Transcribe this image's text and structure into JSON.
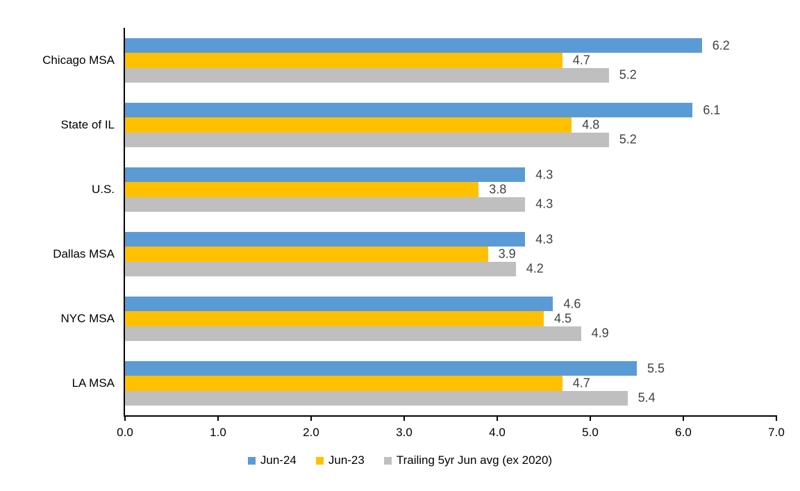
{
  "chart_data": {
    "type": "bar",
    "orientation": "horizontal",
    "title": "",
    "xlabel": "",
    "ylabel": "",
    "categories": [
      "Chicago MSA",
      "State of IL",
      "U.S.",
      "Dallas MSA",
      "NYC MSA",
      "LA MSA"
    ],
    "series": [
      {
        "name": "Jun-24",
        "color": "#5B9BD5",
        "values": [
          6.2,
          6.1,
          4.3,
          4.3,
          4.6,
          5.5
        ]
      },
      {
        "name": "Jun-23",
        "color": "#FFC000",
        "values": [
          4.7,
          4.8,
          3.8,
          3.9,
          4.5,
          4.7
        ]
      },
      {
        "name": "Trailing 5yr Jun avg (ex 2020)",
        "color": "#BFBFBF",
        "values": [
          5.2,
          5.2,
          4.3,
          4.2,
          4.9,
          5.4
        ]
      }
    ],
    "xlim": [
      0.0,
      7.0
    ],
    "x_ticks": [
      0.0,
      1.0,
      2.0,
      3.0,
      4.0,
      5.0,
      6.0,
      7.0
    ],
    "tick_label_decimals": 1,
    "value_label_decimals": 1,
    "value_label_color": "#404040",
    "axis_color": "#000000",
    "grid": false,
    "legend_position": "bottom"
  }
}
